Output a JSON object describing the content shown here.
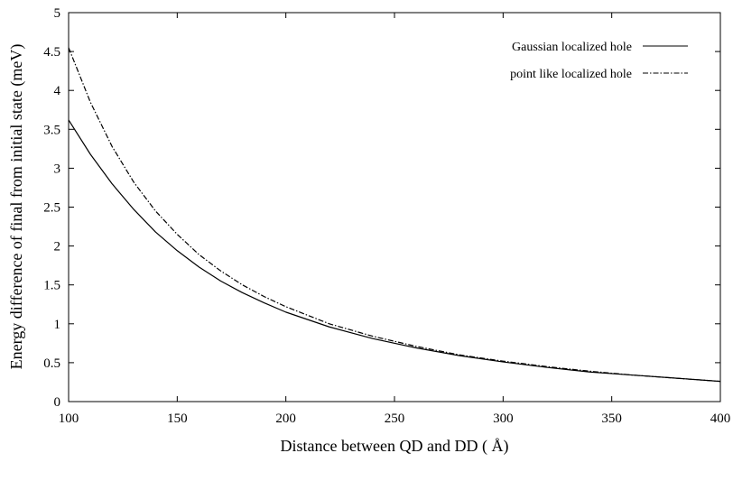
{
  "chart_data": {
    "type": "line",
    "title": "",
    "xlabel": "Distance between QD and DD ( Å)",
    "ylabel": "Energy difference of final from initial state (meV)",
    "xlim": [
      100,
      400
    ],
    "ylim": [
      0,
      5
    ],
    "xticks": [
      "100",
      "150",
      "200",
      "250",
      "300",
      "350",
      "400"
    ],
    "yticks": [
      "0",
      "0.5",
      "1",
      "1.5",
      "2",
      "2.5",
      "3",
      "3.5",
      "4",
      "4.5",
      "5"
    ],
    "grid": false,
    "legend_position": "top-right",
    "series": [
      {
        "name": "Gaussian localized hole",
        "line_style": "solid",
        "color": "#000000",
        "x": [
          100,
          110,
          120,
          130,
          140,
          150,
          160,
          170,
          180,
          190,
          200,
          220,
          240,
          260,
          280,
          300,
          320,
          340,
          360,
          380,
          400
        ],
        "y": [
          3.62,
          3.18,
          2.8,
          2.47,
          2.18,
          1.94,
          1.73,
          1.55,
          1.4,
          1.27,
          1.15,
          0.96,
          0.81,
          0.69,
          0.59,
          0.51,
          0.44,
          0.38,
          0.34,
          0.3,
          0.26
        ]
      },
      {
        "name": "point like localized hole",
        "line_style": "dashdot",
        "color": "#000000",
        "x": [
          100,
          110,
          120,
          130,
          140,
          150,
          160,
          170,
          180,
          190,
          200,
          220,
          240,
          260,
          280,
          300,
          320,
          340,
          360,
          380,
          400
        ],
        "y": [
          4.55,
          3.85,
          3.28,
          2.82,
          2.45,
          2.15,
          1.89,
          1.68,
          1.5,
          1.35,
          1.22,
          1.0,
          0.84,
          0.71,
          0.6,
          0.52,
          0.45,
          0.39,
          0.34,
          0.3,
          0.26
        ]
      }
    ]
  }
}
